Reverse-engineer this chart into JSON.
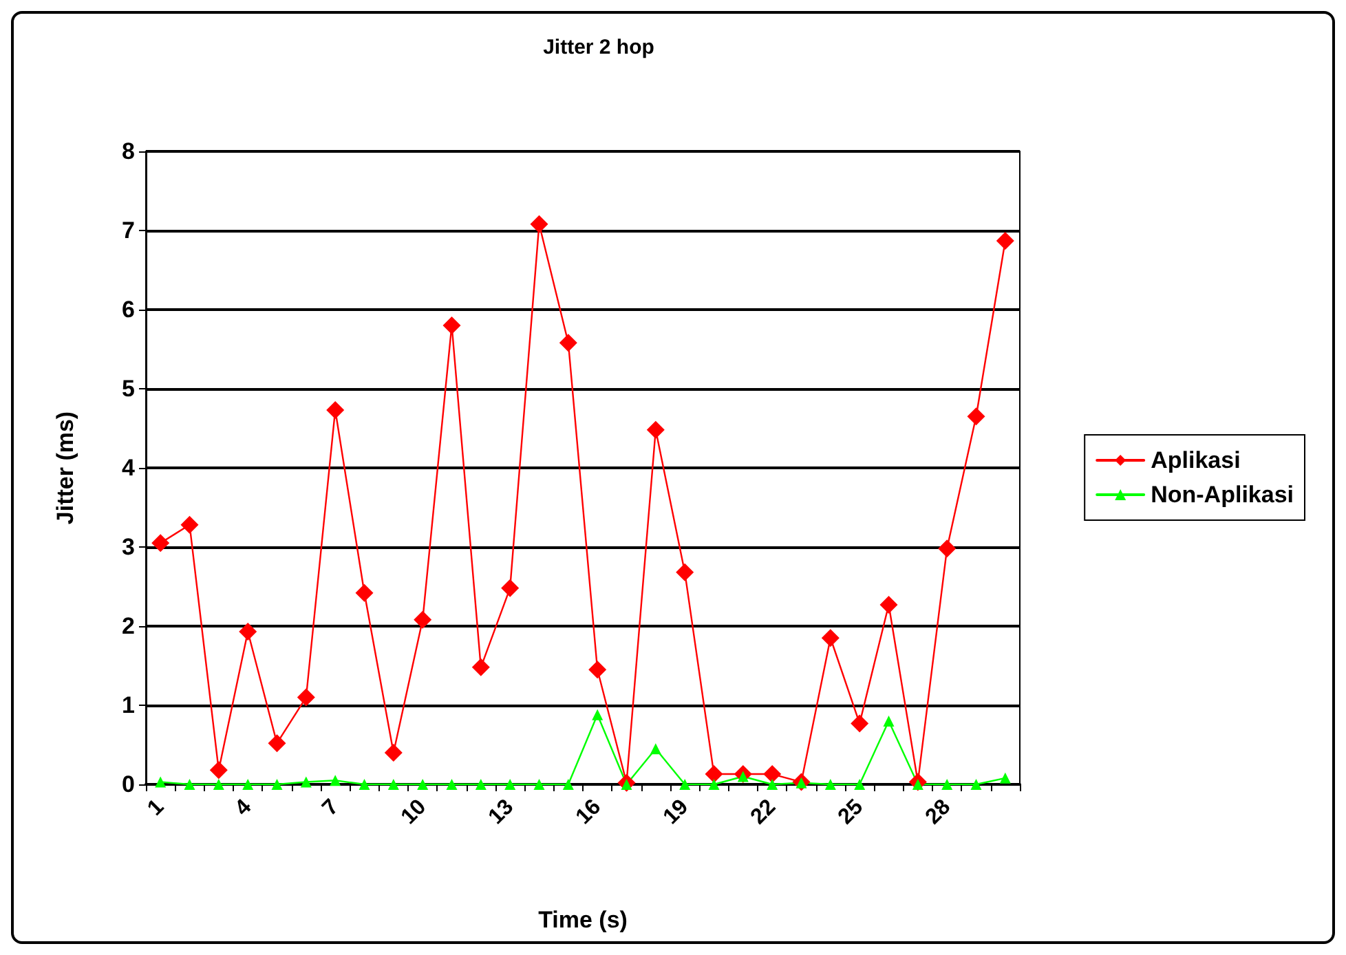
{
  "chart_data": {
    "type": "line",
    "title": "Jitter 2 hop",
    "xlabel": "Time (s)",
    "ylabel": "Jitter (ms)",
    "categories": [
      "1",
      null,
      null,
      "4",
      null,
      null,
      "7",
      null,
      null,
      "10",
      null,
      null,
      "13",
      null,
      null,
      "16",
      null,
      null,
      "19",
      null,
      null,
      "22",
      null,
      null,
      "25",
      null,
      null,
      "28",
      null,
      null
    ],
    "series": [
      {
        "name": "Aplikasi",
        "color": "#ff0000",
        "marker": "diamond",
        "values": [
          3.05,
          3.28,
          0.18,
          1.93,
          0.52,
          1.1,
          4.73,
          2.42,
          0.4,
          2.08,
          5.8,
          1.48,
          2.48,
          7.08,
          5.58,
          1.45,
          0.02,
          4.48,
          2.68,
          0.13,
          0.13,
          0.13,
          0.03,
          1.85,
          0.77,
          2.27,
          0.03,
          2.98,
          4.65,
          6.87
        ]
      },
      {
        "name": "Non-Aplikasi",
        "color": "#00ff00",
        "marker": "triangle",
        "values": [
          0.03,
          0,
          0,
          0,
          0,
          0.03,
          0.05,
          0,
          0,
          0,
          0,
          0,
          0,
          0,
          0,
          0.88,
          0,
          0.45,
          0,
          0,
          0.1,
          0,
          0.02,
          0,
          0,
          0.8,
          0,
          0,
          0,
          0.08
        ]
      }
    ],
    "ylim": [
      0,
      8
    ],
    "yticks": [
      0,
      1,
      2,
      3,
      4,
      5,
      6,
      7,
      8
    ],
    "grid": "y",
    "legend": "right",
    "line_style": "solid"
  }
}
